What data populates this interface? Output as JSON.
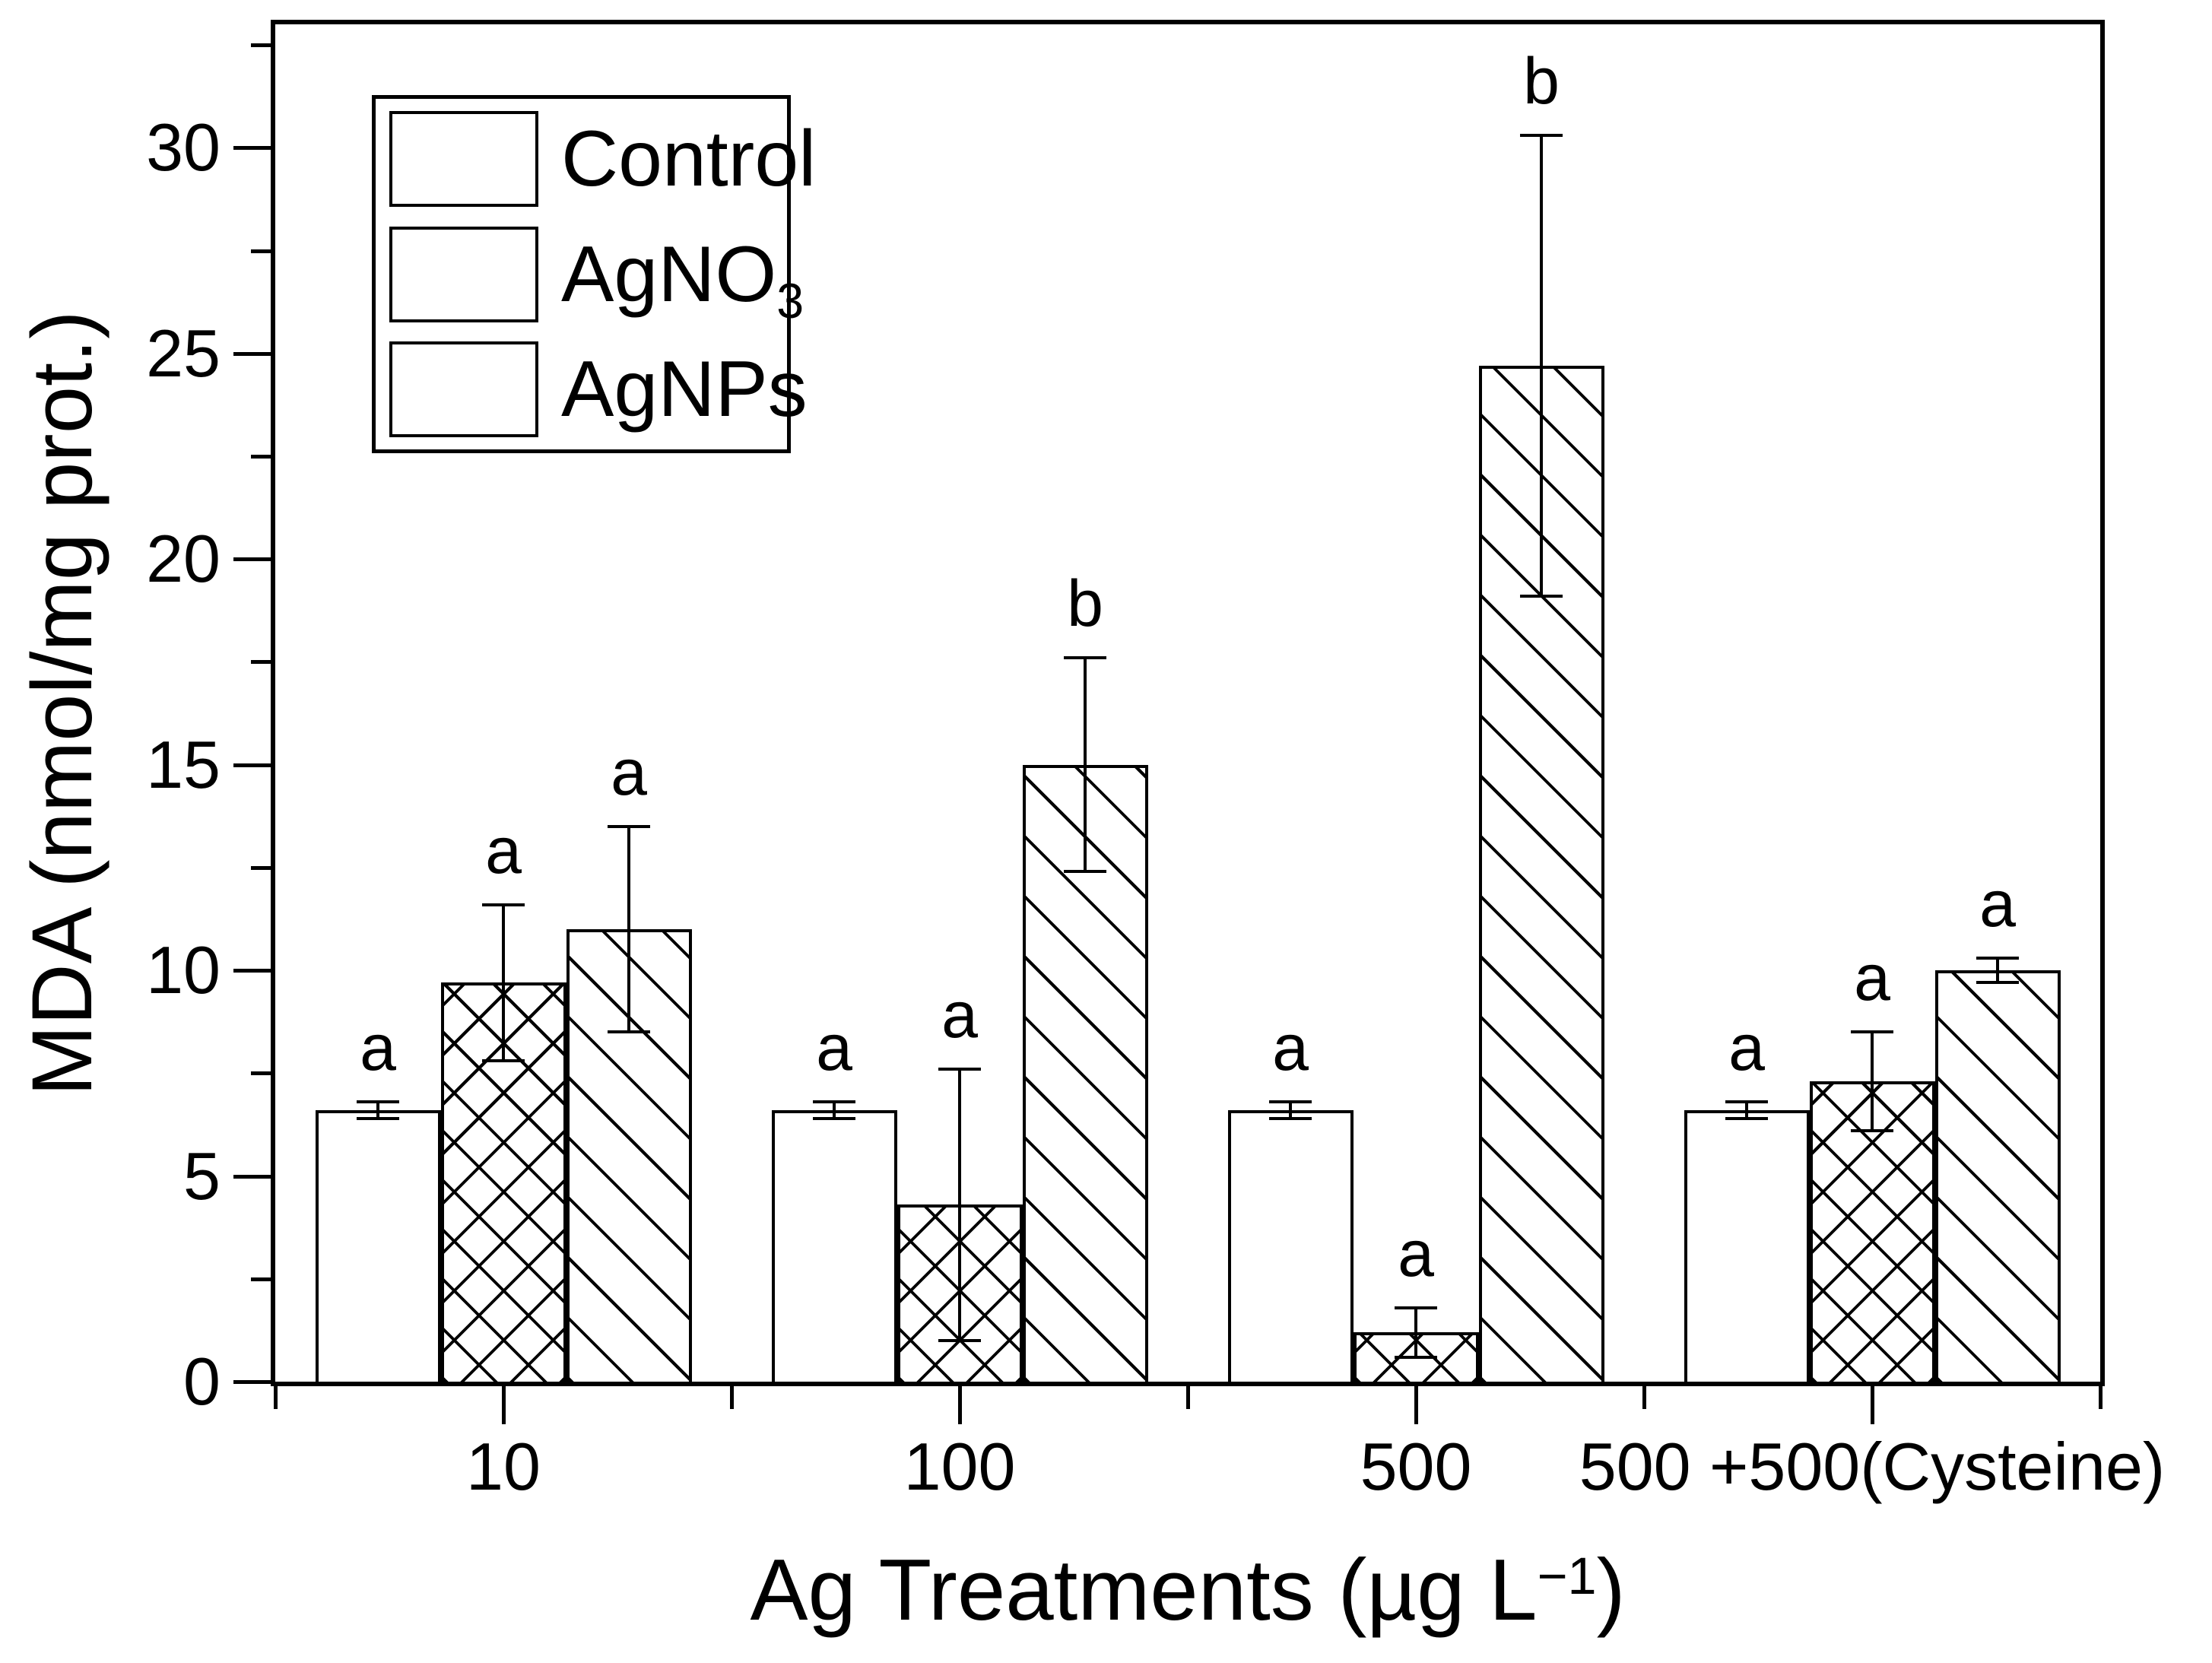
{
  "colors": {
    "ink": "#000000",
    "background": "#ffffff"
  },
  "legend": {
    "items": [
      {
        "label": "Control",
        "pattern": "plain"
      },
      {
        "label": "AgNO",
        "sub": "3",
        "pattern": "crosshatch"
      },
      {
        "label": "AgNPs",
        "pattern": "diagonal"
      }
    ]
  },
  "chart_data": {
    "type": "bar",
    "title": "",
    "ylabel": "MDA (nmol/mg prot.)",
    "xlabel": {
      "pre": "Ag Treatments (µg L",
      "sup": "−1",
      "post": ")"
    },
    "ylim": [
      0,
      33
    ],
    "y_ticks_major": [
      0,
      5,
      10,
      15,
      20,
      25,
      30
    ],
    "y_ticks_minor": [
      2.5,
      7.5,
      12.5,
      17.5,
      22.5,
      27.5,
      32.5
    ],
    "grid": false,
    "legend_position": "top-left-inside",
    "categories": [
      "10",
      "100",
      "500",
      "500 +500(Cysteine)"
    ],
    "series": [
      {
        "name": "Control",
        "pattern": "plain",
        "values": [
          6.6,
          6.6,
          6.6,
          6.6
        ],
        "errors": [
          0.2,
          0.2,
          0.2,
          0.2
        ],
        "sig_letters": [
          "a",
          "a",
          "a",
          "a"
        ]
      },
      {
        "name": "AgNO₃",
        "pattern": "crosshatch",
        "values": [
          9.7,
          4.3,
          1.2,
          7.3
        ],
        "errors": [
          1.9,
          3.3,
          0.6,
          1.2
        ],
        "sig_letters": [
          "a",
          "a",
          "a",
          "a"
        ]
      },
      {
        "name": "AgNPs",
        "pattern": "diagonal",
        "values": [
          11.0,
          15.0,
          24.7,
          10.0
        ],
        "errors": [
          2.5,
          2.6,
          5.6,
          0.3
        ],
        "sig_letters": [
          "a",
          "b",
          "b",
          "a"
        ]
      }
    ]
  }
}
